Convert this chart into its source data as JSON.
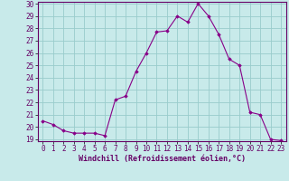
{
  "x": [
    0,
    1,
    2,
    3,
    4,
    5,
    6,
    7,
    8,
    9,
    10,
    11,
    12,
    13,
    14,
    15,
    16,
    17,
    18,
    19,
    20,
    21,
    22,
    23
  ],
  "y": [
    20.5,
    20.2,
    19.7,
    19.5,
    19.5,
    19.5,
    19.3,
    22.2,
    22.5,
    24.5,
    26.0,
    27.7,
    27.8,
    29.0,
    28.5,
    30.0,
    29.0,
    27.5,
    25.5,
    25.0,
    21.2,
    21.0,
    19.0,
    18.9
  ],
  "line_color": "#880088",
  "marker_color": "#880088",
  "bg_color": "#c8eaea",
  "grid_color": "#99cccc",
  "xlabel": "Windchill (Refroidissement éolien,°C)",
  "ylim": [
    19,
    30
  ],
  "xlim": [
    -0.5,
    23.5
  ],
  "yticks": [
    19,
    20,
    21,
    22,
    23,
    24,
    25,
    26,
    27,
    28,
    29,
    30
  ],
  "xticks": [
    0,
    1,
    2,
    3,
    4,
    5,
    6,
    7,
    8,
    9,
    10,
    11,
    12,
    13,
    14,
    15,
    16,
    17,
    18,
    19,
    20,
    21,
    22,
    23
  ],
  "axis_color": "#660066",
  "tick_color": "#660066",
  "label_color": "#660066",
  "tick_fontsize": 5.5,
  "xlabel_fontsize": 6.0
}
